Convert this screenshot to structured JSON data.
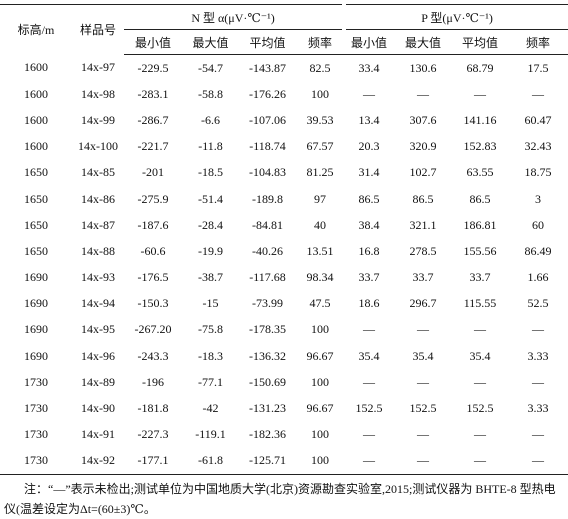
{
  "table": {
    "header": [
      "标高/m",
      "样品号",
      "N 型 α(μV·℃⁻¹)",
      "P 型(μV·℃⁻¹)"
    ],
    "sub_header": [
      "最小值",
      "最大值",
      "平均值",
      "频率",
      "最小值",
      "最大值",
      "平均值",
      "频率"
    ],
    "rows": [
      [
        "1600",
        "14x-97",
        "-229.5",
        "-54.7",
        "-143.87",
        "82.5",
        "33.4",
        "130.6",
        "68.79",
        "17.5"
      ],
      [
        "1600",
        "14x-98",
        "-283.1",
        "-58.8",
        "-176.26",
        "100",
        "—",
        "—",
        "—",
        "—"
      ],
      [
        "1600",
        "14x-99",
        "-286.7",
        "-6.6",
        "-107.06",
        "39.53",
        "13.4",
        "307.6",
        "141.16",
        "60.47"
      ],
      [
        "1600",
        "14x-100",
        "-221.7",
        "-11.8",
        "-118.74",
        "67.57",
        "20.3",
        "320.9",
        "152.83",
        "32.43"
      ],
      [
        "1650",
        "14x-85",
        "-201",
        "-18.5",
        "-104.83",
        "81.25",
        "31.4",
        "102.7",
        "63.55",
        "18.75"
      ],
      [
        "1650",
        "14x-86",
        "-275.9",
        "-51.4",
        "-189.8",
        "97",
        "86.5",
        "86.5",
        "86.5",
        "3"
      ],
      [
        "1650",
        "14x-87",
        "-187.6",
        "-28.4",
        "-84.81",
        "40",
        "38.4",
        "321.1",
        "186.81",
        "60"
      ],
      [
        "1650",
        "14x-88",
        "-60.6",
        "-19.9",
        "-40.26",
        "13.51",
        "16.8",
        "278.5",
        "155.56",
        "86.49"
      ],
      [
        "1690",
        "14x-93",
        "-176.5",
        "-38.7",
        "-117.68",
        "98.34",
        "33.7",
        "33.7",
        "33.7",
        "1.66"
      ],
      [
        "1690",
        "14x-94",
        "-150.3",
        "-15",
        "-73.99",
        "47.5",
        "18.6",
        "296.7",
        "115.55",
        "52.5"
      ],
      [
        "1690",
        "14x-95",
        "-267.20",
        "-75.8",
        "-178.35",
        "100",
        "—",
        "—",
        "—",
        "—"
      ],
      [
        "1690",
        "14x-96",
        "-243.3",
        "-18.3",
        "-136.32",
        "96.67",
        "35.4",
        "35.4",
        "35.4",
        "3.33"
      ],
      [
        "1730",
        "14x-89",
        "-196",
        "-77.1",
        "-150.69",
        "100",
        "—",
        "—",
        "—",
        "—"
      ],
      [
        "1730",
        "14x-90",
        "-181.8",
        "-42",
        "-131.23",
        "96.67",
        "152.5",
        "152.5",
        "152.5",
        "3.33"
      ],
      [
        "1730",
        "14x-91",
        "-227.3",
        "-119.1",
        "-182.36",
        "100",
        "—",
        "—",
        "—",
        "—"
      ],
      [
        "1730",
        "14x-92",
        "-177.1",
        "-61.8",
        "-125.71",
        "100",
        "—",
        "—",
        "—",
        "—"
      ]
    ]
  },
  "note": "注：“—”表示未检出;测试单位为中国地质大学(北京)资源勘查实验室,2015;测试仪器为 BHTE-8 型热电仪(温差设定为Δt=(60±3)℃。"
}
